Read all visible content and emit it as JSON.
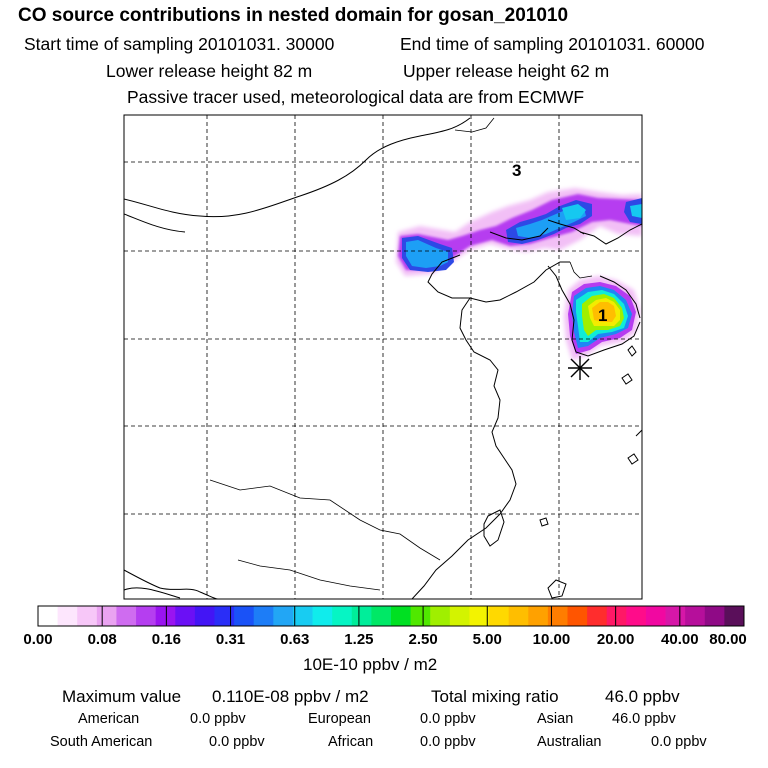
{
  "header": {
    "title": "CO  source contributions in nested domain for gosan_201010",
    "start_label": "Start time of sampling 20101031. 30000",
    "end_label": "End time of sampling 20101031. 60000",
    "lower_label": "Lower release height   82 m",
    "upper_label": "Upper release height   62 m",
    "note": "Passive tracer used, meteorological data are from ECMWF"
  },
  "map": {
    "labels": [
      {
        "text": "3"
      },
      {
        "text": "1"
      }
    ],
    "station_marker": "asterisk-icon"
  },
  "colorbar": {
    "colors": [
      "#ffffff",
      "#fde6fd",
      "#f7c7f8",
      "#eaa3f1",
      "#cf6cf0",
      "#b53ef0",
      "#9a14f0",
      "#6b10f5",
      "#4315f5",
      "#2a2ef7",
      "#1a52f7",
      "#1d7df7",
      "#22a6f5",
      "#18ccf2",
      "#10ecec",
      "#06f5c4",
      "#00ee9a",
      "#00e866",
      "#00e022",
      "#50e800",
      "#a0ef00",
      "#d3f300",
      "#f3f300",
      "#ffd900",
      "#ffbe00",
      "#ffa100",
      "#ff7d00",
      "#ff5500",
      "#ff2d2d",
      "#ff1866",
      "#ff0c8a",
      "#f108a1",
      "#d617a8",
      "#b60f9b",
      "#8f0a86",
      "#5a0f5a"
    ],
    "tick_labels": [
      "0.00",
      "0.08",
      "0.16",
      "0.31",
      "0.63",
      "1.25",
      "2.50",
      "5.00",
      "10.00",
      "20.00",
      "40.00",
      "80.00"
    ],
    "unit": "10E-10 ppbv / m2"
  },
  "summary": {
    "max_label": "Maximum value",
    "max_value": "0.110E-08 ppbv / m2",
    "total_label": "Total mixing ratio",
    "total_value": "46.0 ppbv",
    "regions": [
      {
        "name": "American",
        "value": "0.0 ppbv"
      },
      {
        "name": "European",
        "value": "0.0 ppbv"
      },
      {
        "name": "Asian",
        "value": "46.0 ppbv"
      },
      {
        "name": "South American",
        "value": "0.0 ppbv"
      },
      {
        "name": "African",
        "value": "0.0 ppbv"
      },
      {
        "name": "Australian",
        "value": "0.0 ppbv"
      }
    ]
  }
}
